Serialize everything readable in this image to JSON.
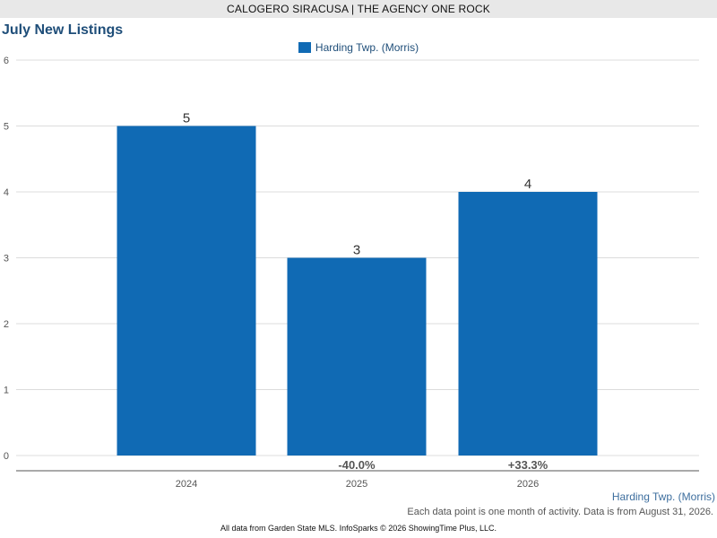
{
  "header": {
    "text": "CALOGERO SIRACUSA | THE AGENCY ONE ROCK"
  },
  "colors": {
    "bar": "#106ab4",
    "grid": "#dcdcdc",
    "axis": "#555555"
  },
  "chart_data": {
    "type": "bar",
    "title": "July New Listings",
    "categories": [
      "2024",
      "2025",
      "2026"
    ],
    "series": [
      {
        "name": "Harding Twp. (Morris)",
        "values": [
          5,
          3,
          4
        ]
      }
    ],
    "data_labels": [
      "5",
      "3",
      "4"
    ],
    "change_labels": [
      "",
      "-40.0%",
      "+33.3%"
    ],
    "y_ticks": [
      "0",
      "1",
      "2",
      "3",
      "4",
      "5",
      "6"
    ],
    "ylim": [
      0,
      6
    ],
    "xlabel": "",
    "ylabel": "",
    "grid": true,
    "legend": "top-center"
  },
  "footer": {
    "region": "Harding Twp. (Morris)",
    "activity_note": "Each data point is one month of activity. Data is from August 31, 2026.",
    "source": "All data from Garden State MLS. InfoSparks © 2026 ShowingTime Plus, LLC."
  }
}
